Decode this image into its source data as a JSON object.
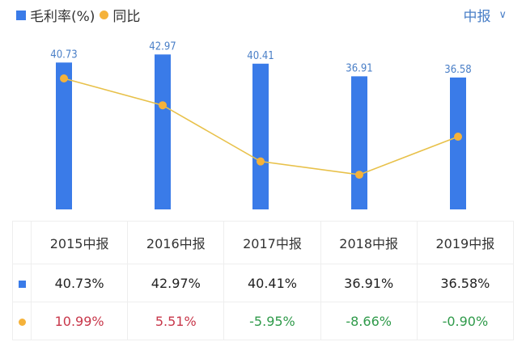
{
  "legend": {
    "bar": "毛利率(%)",
    "line": "同比"
  },
  "period_selector": "中报",
  "colors": {
    "bar": "#3a7be8",
    "line": "#f5b23a",
    "positive": "#c8374a",
    "negative": "#2f9a4a"
  },
  "chart_data": {
    "type": "bar",
    "categories": [
      "2015中报",
      "2016中报",
      "2017中报",
      "2018中报",
      "2019中报"
    ],
    "series": [
      {
        "name": "毛利率(%)",
        "type": "bar",
        "values": [
          40.73,
          42.97,
          40.41,
          36.91,
          36.58
        ],
        "labels": [
          "40.73",
          "42.97",
          "40.41",
          "36.91",
          "36.58"
        ]
      },
      {
        "name": "同比",
        "type": "line",
        "values": [
          10.99,
          5.51,
          -5.95,
          -8.66,
          -0.9
        ]
      }
    ]
  },
  "table": {
    "headers": [
      "2015中报",
      "2016中报",
      "2017中报",
      "2018中报",
      "2019中报"
    ],
    "margin": [
      "40.73%",
      "42.97%",
      "40.41%",
      "36.91%",
      "36.58%"
    ],
    "yoy": [
      "10.99%",
      "5.51%",
      "-5.95%",
      "-8.66%",
      "-0.90%"
    ]
  }
}
